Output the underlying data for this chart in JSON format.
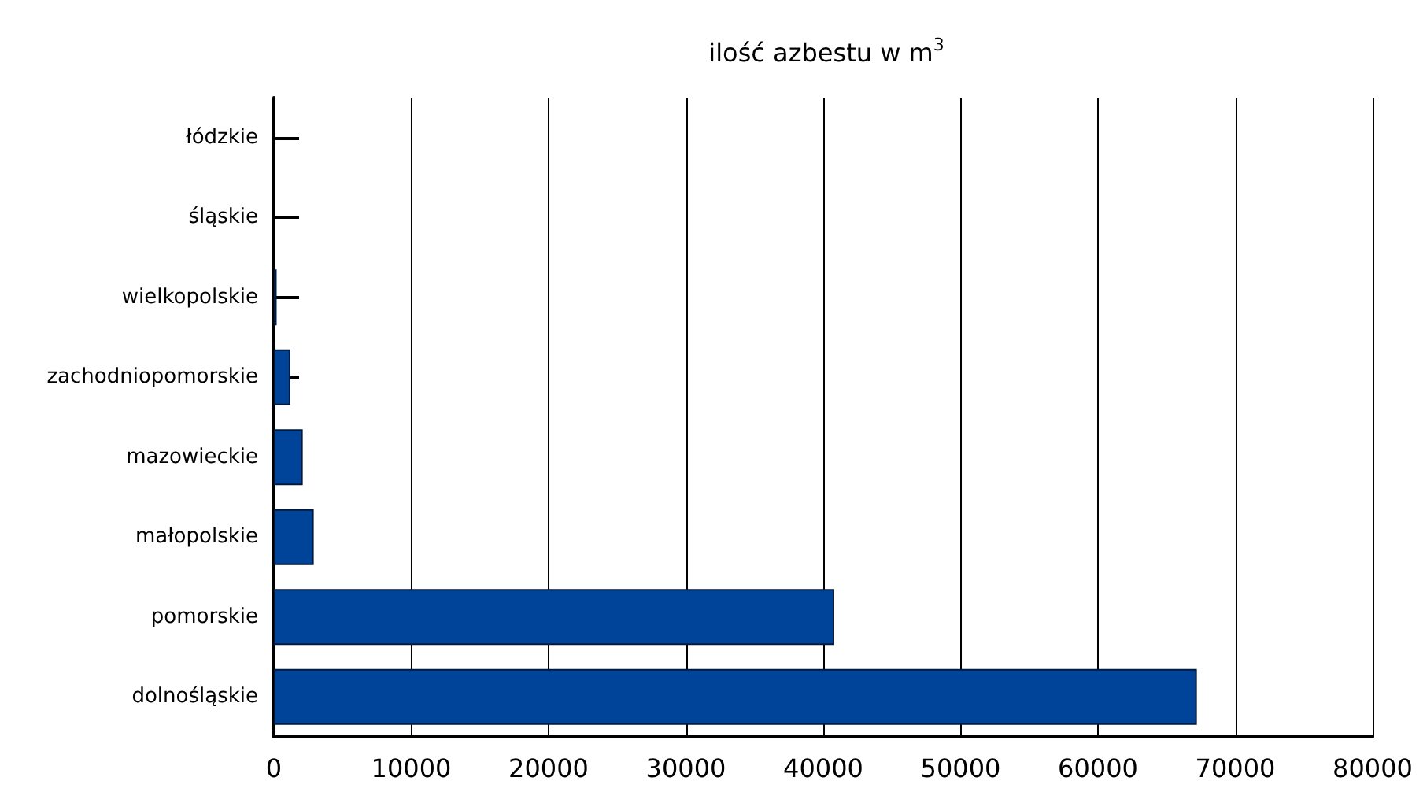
{
  "chart_data": {
    "type": "bar",
    "orientation": "horizontal",
    "title": "ilość azbestu w m$^{3}$",
    "categories": [
      "łódzkie",
      "śląskie",
      "wielkopolskie",
      "zachodniopomorskie",
      "mazowieckie",
      "małopolskie",
      "pomorskie",
      "dolnośląskie"
    ],
    "values": [
      0,
      0,
      200,
      1200,
      2100,
      2900,
      40800,
      67200
    ],
    "color": "#00449a",
    "xlim": [
      0,
      80000
    ],
    "xticks": [
      0,
      10000,
      20000,
      30000,
      40000,
      50000,
      60000,
      70000,
      80000
    ],
    "grid": "x"
  }
}
